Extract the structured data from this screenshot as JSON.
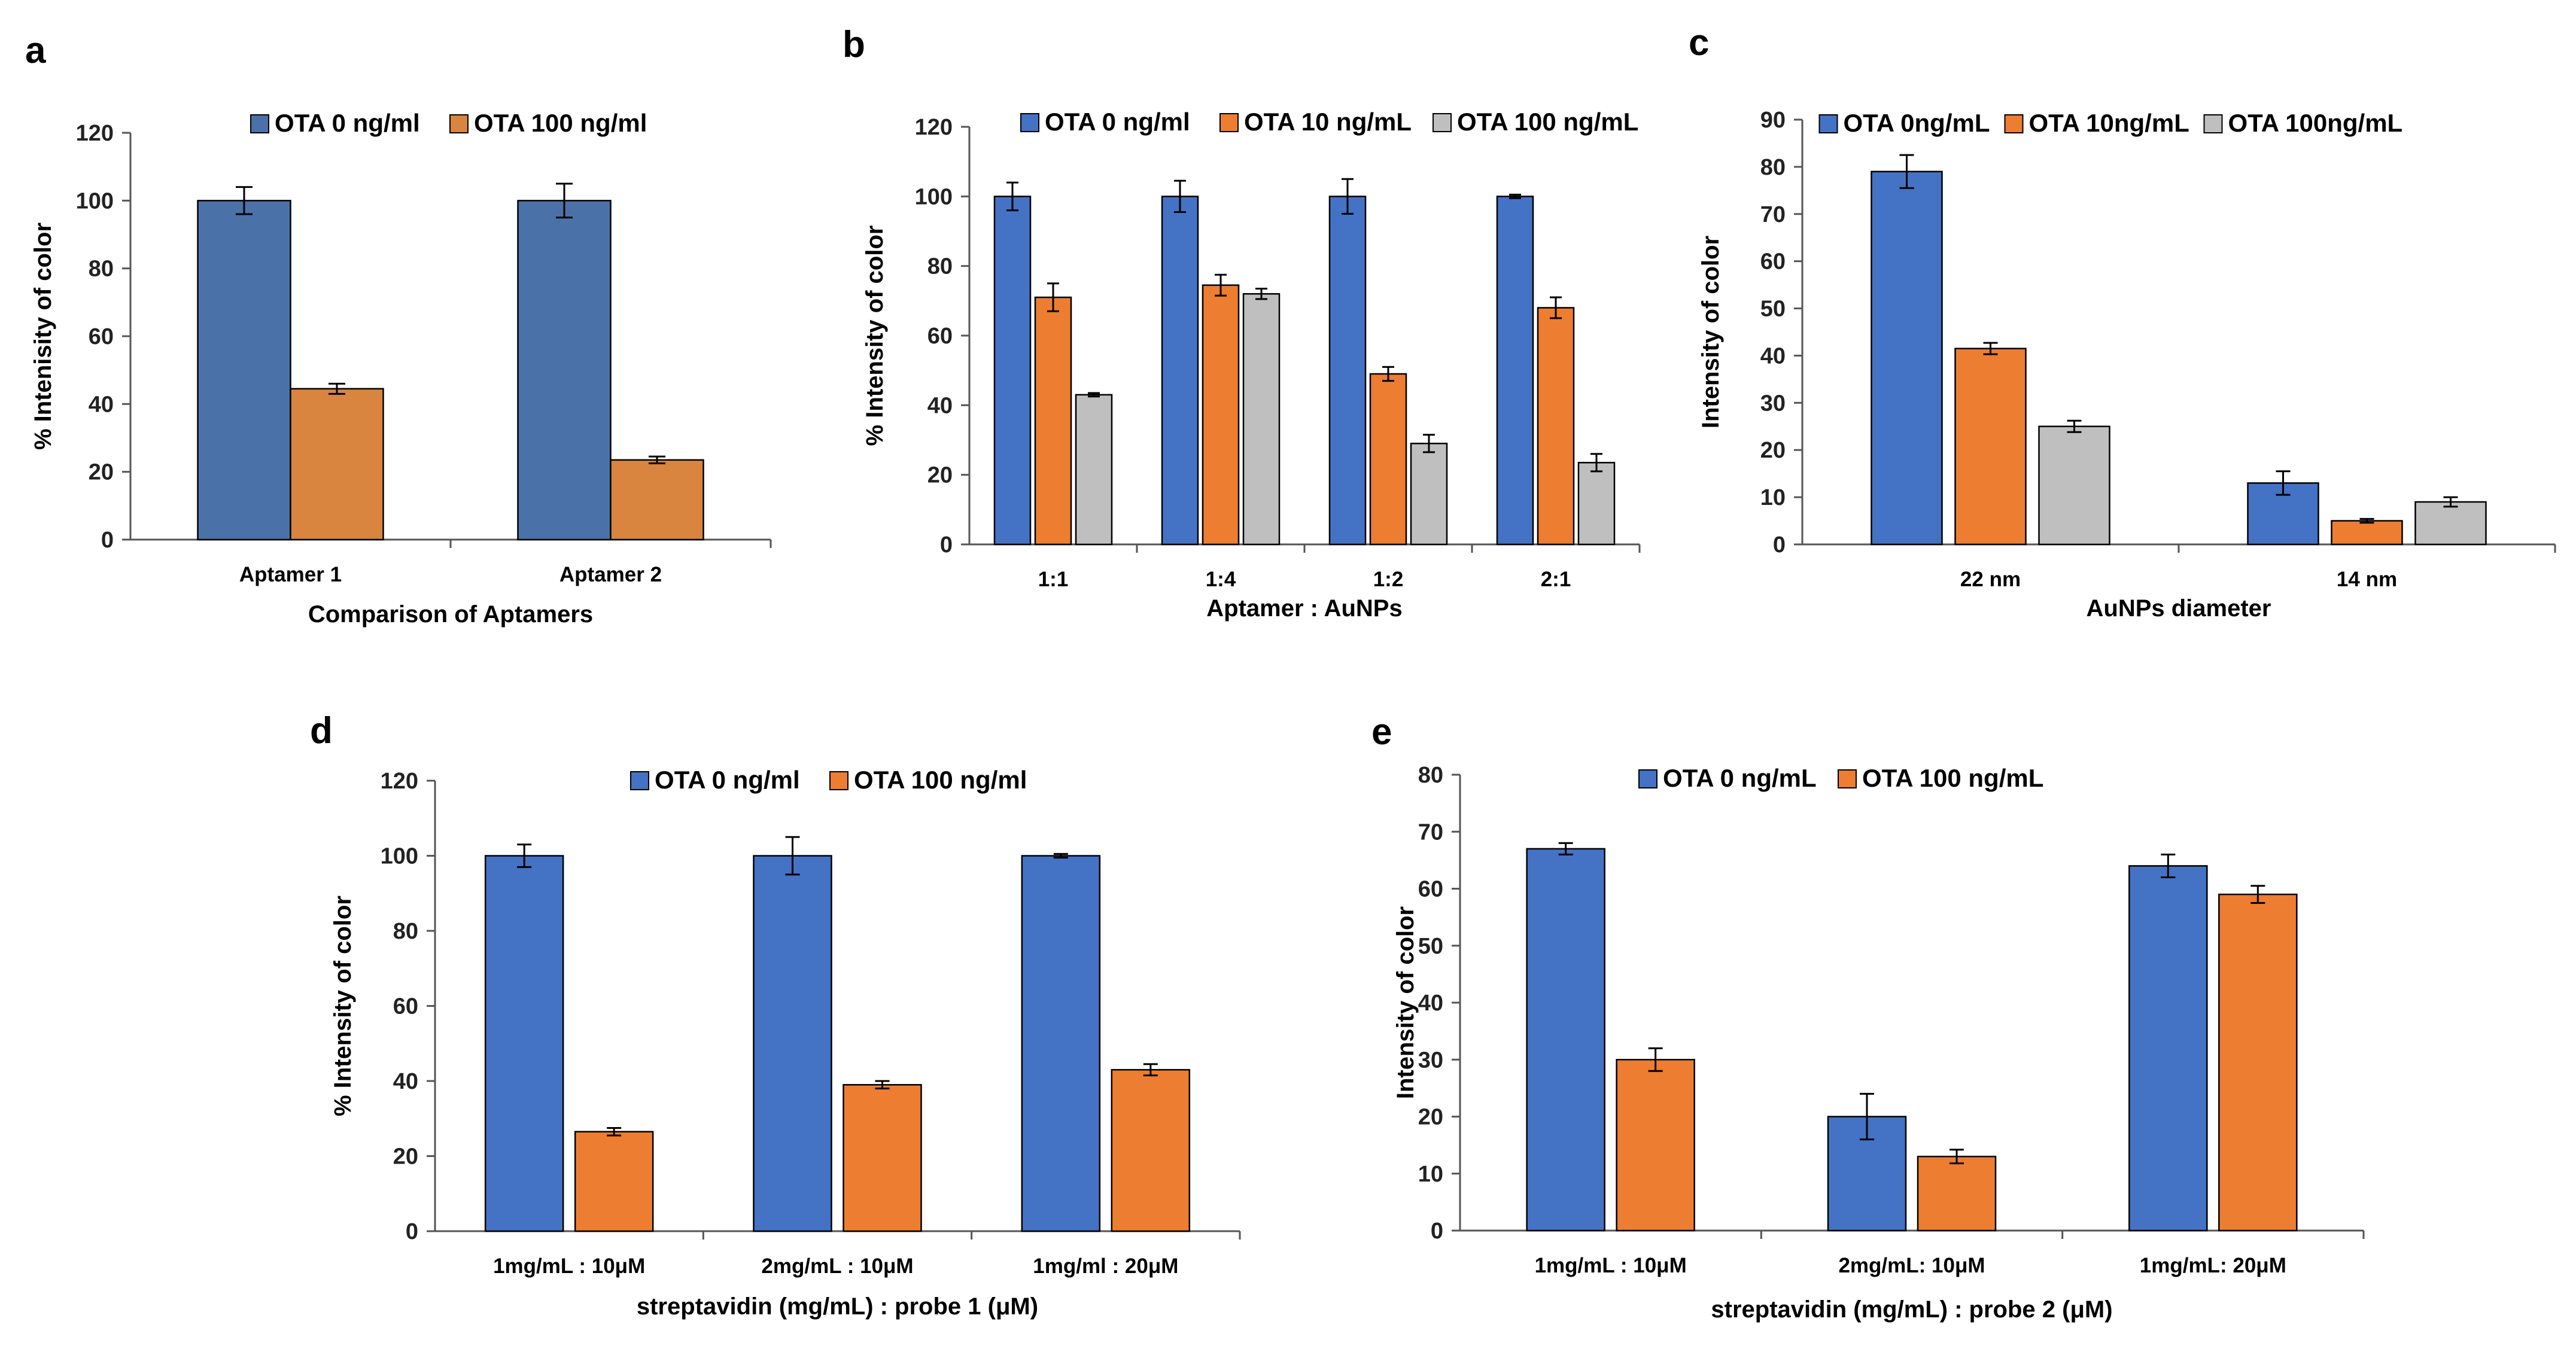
{
  "figure": {
    "colors": {
      "blue": "#4472C4",
      "orange": "#ED7D31",
      "gray": "#BFBFBF",
      "steel": "#4A72A8",
      "tan": "#D9843F"
    }
  },
  "chart_data": [
    {
      "id": "a",
      "panel_label": "a",
      "type": "bar",
      "categories": [
        "Aptamer 1",
        "Aptamer 2"
      ],
      "series": [
        {
          "name": "OTA 0 ng/ml",
          "values": [
            100,
            100
          ],
          "errors": [
            4,
            5
          ],
          "color": "#4A72A8"
        },
        {
          "name": "OTA 100 ng/ml",
          "values": [
            44.5,
            23.5
          ],
          "errors": [
            1.5,
            1
          ],
          "color": "#D9843F"
        }
      ],
      "xlabel": "Comparison of Aptamers",
      "ylabel": "% Intenisity of color",
      "ylim": [
        0,
        120
      ],
      "ytick_step": 20,
      "legend_position": "top"
    },
    {
      "id": "b",
      "panel_label": "b",
      "type": "bar",
      "categories": [
        "1:1",
        "1:4",
        "1:2",
        "2:1"
      ],
      "series": [
        {
          "name": "OTA 0 ng/ml",
          "values": [
            100,
            100,
            100,
            100
          ],
          "errors": [
            4,
            4.5,
            5,
            0.5
          ],
          "color": "#4472C4"
        },
        {
          "name": "OTA 10 ng/mL",
          "values": [
            71,
            74.5,
            49,
            68
          ],
          "errors": [
            4,
            3,
            2,
            3
          ],
          "color": "#ED7D31"
        },
        {
          "name": "OTA 100 ng/mL",
          "values": [
            43,
            72,
            29,
            23.5
          ],
          "errors": [
            0.5,
            1.5,
            2.5,
            2.5
          ],
          "color": "#BFBFBF"
        }
      ],
      "xlabel": "Aptamer : AuNPs",
      "ylabel": "% Intensity of color",
      "ylim": [
        0,
        120
      ],
      "ytick_step": 20,
      "legend_position": "top"
    },
    {
      "id": "c",
      "panel_label": "c",
      "type": "bar",
      "categories": [
        "22 nm",
        "14 nm"
      ],
      "series": [
        {
          "name": "OTA 0ng/mL",
          "values": [
            79,
            13
          ],
          "errors": [
            3.5,
            2.5
          ],
          "color": "#4472C4"
        },
        {
          "name": "OTA 10ng/mL",
          "values": [
            41.5,
            5
          ],
          "errors": [
            1.2,
            0.4
          ],
          "color": "#ED7D31"
        },
        {
          "name": "OTA 100ng/mL",
          "values": [
            25,
            9
          ],
          "errors": [
            1.2,
            1
          ],
          "color": "#BFBFBF"
        }
      ],
      "xlabel": "AuNPs diameter",
      "ylabel": "Intensity of color",
      "ylim": [
        0,
        90
      ],
      "ytick_step": 10,
      "legend_position": "top"
    },
    {
      "id": "d",
      "panel_label": "d",
      "type": "bar",
      "categories": [
        "1mg/mL : 10μM",
        "2mg/mL : 10μM",
        "1mg/ml : 20μM"
      ],
      "series": [
        {
          "name": "OTA 0 ng/ml",
          "values": [
            100,
            100,
            100
          ],
          "errors": [
            3,
            5,
            0.5
          ],
          "color": "#4472C4"
        },
        {
          "name": "OTA 100 ng/ml",
          "values": [
            26.5,
            39,
            43
          ],
          "errors": [
            1,
            1,
            1.5
          ],
          "color": "#ED7D31"
        }
      ],
      "xlabel": "streptavidin (mg/mL) : probe 1 (μM)",
      "ylabel": "% Intensity of color",
      "ylim": [
        0,
        120
      ],
      "ytick_step": 20,
      "legend_position": "top"
    },
    {
      "id": "e",
      "panel_label": "e",
      "type": "bar",
      "categories": [
        "1mg/mL : 10μM",
        "2mg/mL: 10μM",
        "1mg/mL:  20μM"
      ],
      "series": [
        {
          "name": "OTA 0 ng/mL",
          "values": [
            67,
            20,
            64
          ],
          "errors": [
            1,
            4,
            2
          ],
          "color": "#4472C4"
        },
        {
          "name": "OTA 100 ng/mL",
          "values": [
            30,
            13,
            59
          ],
          "errors": [
            2,
            1.2,
            1.5
          ],
          "color": "#ED7D31"
        }
      ],
      "xlabel": "streptavidin (mg/mL) : probe 2 (μM)",
      "ylabel": "Intensity of color",
      "ylim": [
        0,
        80
      ],
      "ytick_step": 10,
      "legend_position": "top"
    }
  ]
}
